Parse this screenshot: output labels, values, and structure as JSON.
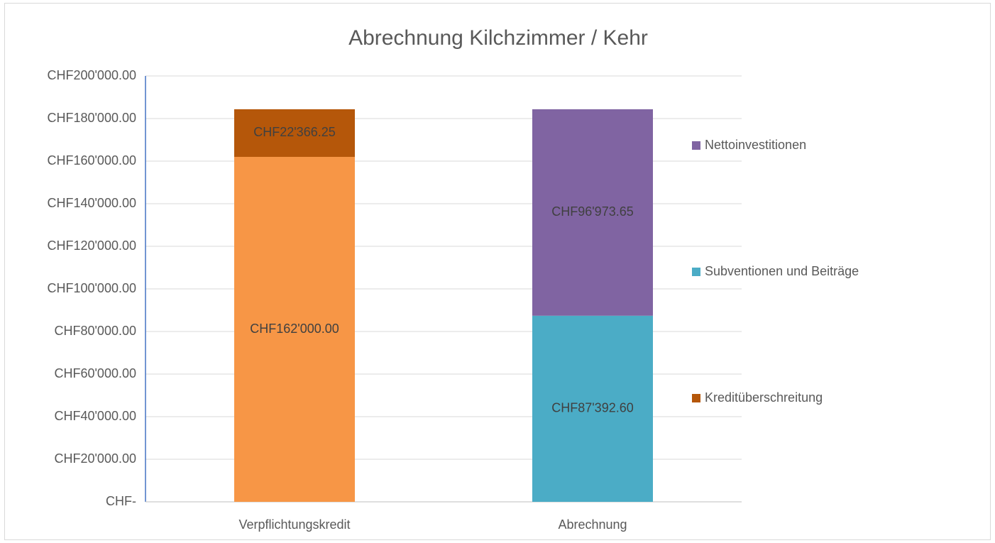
{
  "chart_data": {
    "type": "stacked_bar",
    "title": "Abrechnung Kilchzimmer / Kehr",
    "categories": [
      "Verpflichtungskredit",
      "Abrechnung"
    ],
    "series": [
      {
        "name": null,
        "color": "#f79646",
        "values": [
          162000,
          null
        ],
        "value_labels": [
          "CHF162'000.00",
          null
        ]
      },
      {
        "name": "Kreditüberschreitung",
        "color": "#b5570a",
        "values": [
          22366.25,
          null
        ],
        "value_labels": [
          "CHF22'366.25",
          null
        ]
      },
      {
        "name": "Subventionen und Beiträge",
        "color": "#4bacc6",
        "values": [
          null,
          87392.6
        ],
        "value_labels": [
          null,
          "CHF87'392.60"
        ]
      },
      {
        "name": "Nettoinvestitionen",
        "color": "#8064a2",
        "values": [
          null,
          96973.65
        ],
        "value_labels": [
          null,
          "CHF96'973.65"
        ]
      }
    ],
    "ylim": [
      0,
      200000
    ],
    "yticks": [
      {
        "value": 0,
        "label": "CHF-"
      },
      {
        "value": 20000,
        "label": "CHF20'000.00"
      },
      {
        "value": 40000,
        "label": "CHF40'000.00"
      },
      {
        "value": 60000,
        "label": "CHF60'000.00"
      },
      {
        "value": 80000,
        "label": "CHF80'000.00"
      },
      {
        "value": 100000,
        "label": "CHF100'000.00"
      },
      {
        "value": 120000,
        "label": "CHF120'000.00"
      },
      {
        "value": 140000,
        "label": "CHF140'000.00"
      },
      {
        "value": 160000,
        "label": "CHF160'000.00"
      },
      {
        "value": 180000,
        "label": "CHF180'000.00"
      },
      {
        "value": 200000,
        "label": "CHF200'000.00"
      }
    ],
    "grid": true,
    "legend": "right"
  }
}
